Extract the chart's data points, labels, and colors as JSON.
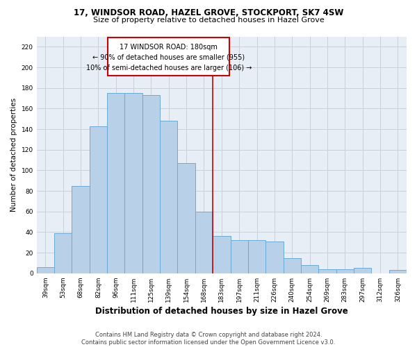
{
  "title_line1": "17, WINDSOR ROAD, HAZEL GROVE, STOCKPORT, SK7 4SW",
  "title_line2": "Size of property relative to detached houses in Hazel Grove",
  "xlabel": "Distribution of detached houses by size in Hazel Grove",
  "ylabel": "Number of detached properties",
  "footnote": "Contains HM Land Registry data © Crown copyright and database right 2024.\nContains public sector information licensed under the Open Government Licence v3.0.",
  "categories": [
    "39sqm",
    "53sqm",
    "68sqm",
    "82sqm",
    "96sqm",
    "111sqm",
    "125sqm",
    "139sqm",
    "154sqm",
    "168sqm",
    "183sqm",
    "197sqm",
    "211sqm",
    "226sqm",
    "240sqm",
    "254sqm",
    "269sqm",
    "283sqm",
    "297sqm",
    "312sqm",
    "326sqm"
  ],
  "values": [
    6,
    39,
    85,
    143,
    175,
    175,
    173,
    148,
    107,
    60,
    36,
    32,
    32,
    31,
    15,
    8,
    4,
    4,
    5,
    0,
    3
  ],
  "bar_color": "#b8d0e8",
  "bar_edge_color": "#6aaad4",
  "annotation_text_line1": "17 WINDSOR ROAD: 180sqm",
  "annotation_text_line2": "← 90% of detached houses are smaller (955)",
  "annotation_text_line3": "10% of semi-detached houses are larger (106) →",
  "vline_index": 10,
  "vline_color": "#cc0000",
  "grid_color": "#c8d0dc",
  "background_color": "#e8eef5",
  "ylim": [
    0,
    230
  ],
  "yticks": [
    0,
    20,
    40,
    60,
    80,
    100,
    120,
    140,
    160,
    180,
    200,
    220
  ],
  "title1_fontsize": 8.5,
  "title2_fontsize": 8.0,
  "xlabel_fontsize": 8.5,
  "ylabel_fontsize": 7.5,
  "tick_fontsize": 6.5,
  "footnote_fontsize": 6.0
}
